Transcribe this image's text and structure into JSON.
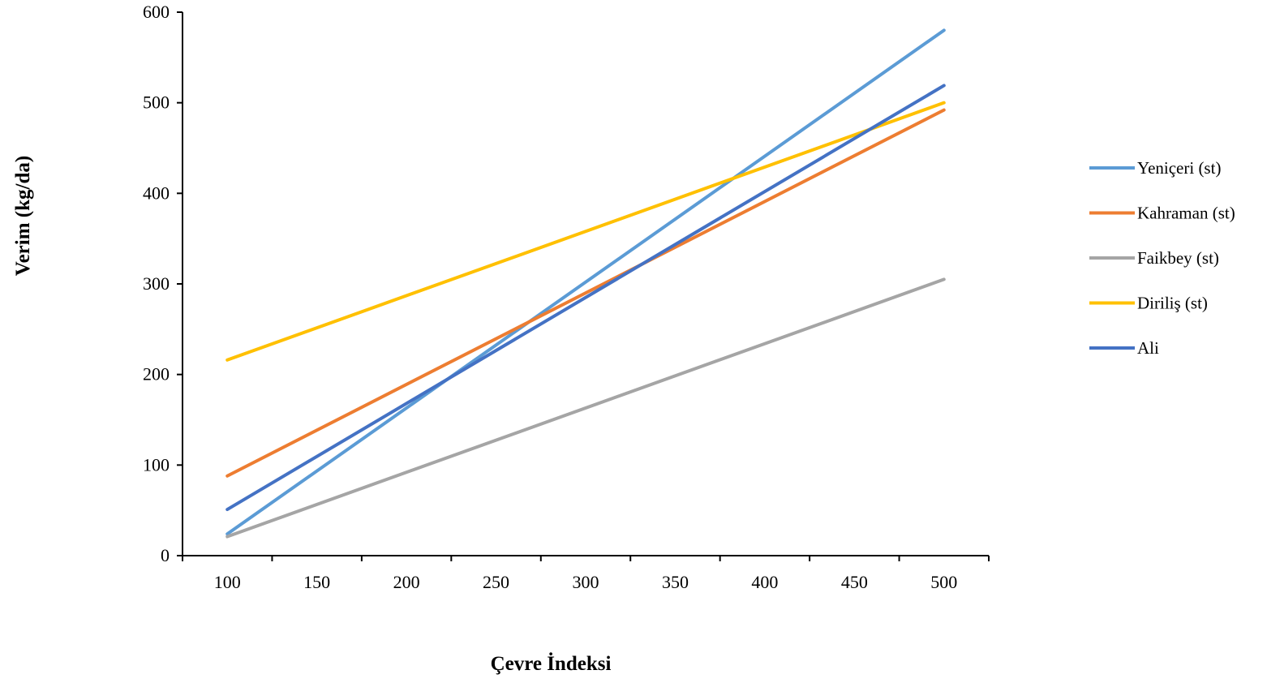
{
  "chart_data": {
    "type": "line",
    "title": "",
    "xlabel": "Çevre İndeksi",
    "ylabel": "Verim (kg/da)",
    "xlim": [
      75,
      525
    ],
    "ylim": [
      0,
      600
    ],
    "x_ticks": [
      100,
      150,
      200,
      250,
      300,
      350,
      400,
      450,
      500
    ],
    "y_ticks": [
      0,
      100,
      200,
      300,
      400,
      500,
      600
    ],
    "grid": false,
    "legend_position": "right",
    "series": [
      {
        "name": "Yeniçeri (st)",
        "color": "#5B9BD5",
        "x": [
          100,
          500
        ],
        "y": [
          24,
          580
        ]
      },
      {
        "name": "Kahraman (st)",
        "color": "#ED7D31",
        "x": [
          100,
          500
        ],
        "y": [
          88,
          492
        ]
      },
      {
        "name": "Faikbey (st)",
        "color": "#A5A5A5",
        "x": [
          100,
          500
        ],
        "y": [
          21,
          305
        ]
      },
      {
        "name": "Diriliş (st)",
        "color": "#FFC000",
        "x": [
          100,
          500
        ],
        "y": [
          216,
          500
        ]
      },
      {
        "name": "Ali",
        "color": "#4472C4",
        "x": [
          100,
          500
        ],
        "y": [
          51,
          519
        ]
      }
    ]
  }
}
